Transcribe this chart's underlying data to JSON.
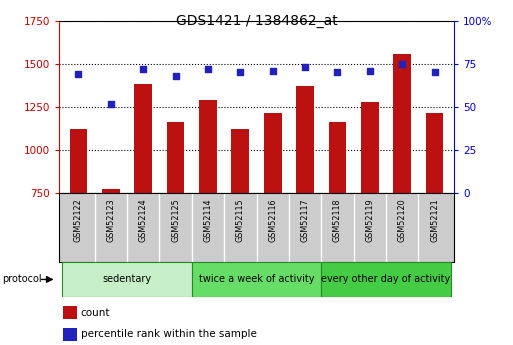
{
  "title": "GDS1421 / 1384862_at",
  "samples": [
    "GSM52122",
    "GSM52123",
    "GSM52124",
    "GSM52125",
    "GSM52114",
    "GSM52115",
    "GSM52116",
    "GSM52117",
    "GSM52118",
    "GSM52119",
    "GSM52120",
    "GSM52121"
  ],
  "counts": [
    1120,
    775,
    1385,
    1160,
    1290,
    1120,
    1215,
    1370,
    1160,
    1280,
    1555,
    1215
  ],
  "percentiles": [
    69,
    52,
    72,
    68,
    72,
    70,
    71,
    73,
    70,
    71,
    75,
    70
  ],
  "bar_color": "#bb1111",
  "dot_color": "#2222bb",
  "ylim_left": [
    750,
    1750
  ],
  "ylim_right": [
    0,
    100
  ],
  "yticks_left": [
    750,
    1000,
    1250,
    1500,
    1750
  ],
  "yticks_right": [
    0,
    25,
    50,
    75,
    100
  ],
  "groups": [
    {
      "label": "sedentary",
      "start": 0,
      "end": 4,
      "color": "#c8f0c8"
    },
    {
      "label": "twice a week of activity",
      "start": 4,
      "end": 8,
      "color": "#66dd66"
    },
    {
      "label": "every other day of activity",
      "start": 8,
      "end": 12,
      "color": "#44cc44"
    }
  ],
  "protocol_label": "protocol",
  "legend_count": "count",
  "legend_pct": "percentile rank within the sample",
  "bg_color": "#ffffff",
  "tick_label_color_left": "#cc0000",
  "tick_label_color_right": "#0000cc",
  "grid_color": "#000000",
  "sample_box_color": "#cccccc",
  "border_color": "#000000"
}
